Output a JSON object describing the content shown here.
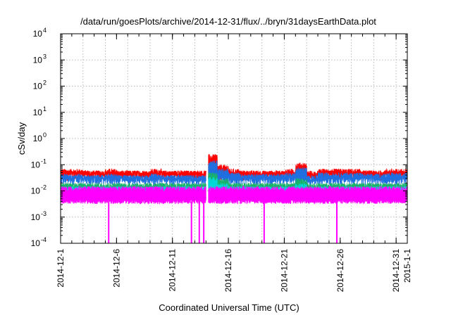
{
  "chart_data": {
    "type": "line",
    "title": "/data/run/goesPlots/archive/2014-12-31/flux/../bryn/31daysEarthData.plot",
    "xlabel": "Coordinated Universal Time (UTC)",
    "ylabel": "cSv/day",
    "x_range": [
      "2014-12-01",
      "2015-01-01"
    ],
    "x_ticks": [
      "2014-12-1",
      "2014-12-6",
      "2014-12-11",
      "2014-12-16",
      "2014-12-21",
      "2014-12-26",
      "2014-12-31",
      "2015-1-1"
    ],
    "y_scale": "log",
    "ylim": [
      0.0001,
      10000
    ],
    "y_ticks": [
      {
        "base": "10",
        "exp": "4"
      },
      {
        "base": "10",
        "exp": "3"
      },
      {
        "base": "10",
        "exp": "2"
      },
      {
        "base": "10",
        "exp": "1"
      },
      {
        "base": "10",
        "exp": "0"
      },
      {
        "base": "10",
        "exp": "-1"
      },
      {
        "base": "10",
        "exp": "-2"
      },
      {
        "base": "10",
        "exp": "-3"
      },
      {
        "base": "10",
        "exp": "-4"
      }
    ],
    "grid": true,
    "data_gap": [
      "2014-12-14",
      "2014-12-14.2"
    ],
    "series": [
      {
        "color": "#ff0000",
        "baseline": 0.06,
        "day_values": [
          0.07,
          0.07,
          0.06,
          0.06,
          0.07,
          0.06,
          0.06,
          0.06,
          0.07,
          0.06,
          0.06,
          0.06,
          0.06,
          0.25,
          0.1,
          0.07,
          0.06,
          0.06,
          0.06,
          0.06,
          0.07,
          0.12,
          0.05,
          0.07,
          0.07,
          0.07,
          0.07,
          0.06,
          0.06,
          0.07,
          0.07
        ]
      },
      {
        "color": "#1f6fe0",
        "baseline": 0.04,
        "day_values": [
          0.045,
          0.045,
          0.04,
          0.04,
          0.045,
          0.04,
          0.04,
          0.04,
          0.045,
          0.04,
          0.04,
          0.04,
          0.04,
          0.15,
          0.07,
          0.05,
          0.045,
          0.045,
          0.045,
          0.045,
          0.05,
          0.08,
          0.035,
          0.05,
          0.05,
          0.05,
          0.05,
          0.045,
          0.045,
          0.05,
          0.05
        ]
      },
      {
        "color": "#19b36b",
        "baseline": 0.02,
        "day_values": [
          0.02,
          0.02,
          0.02,
          0.02,
          0.02,
          0.02,
          0.02,
          0.02,
          0.02,
          0.02,
          0.02,
          0.02,
          0.02,
          0.05,
          0.03,
          0.02,
          0.02,
          0.02,
          0.02,
          0.02,
          0.02,
          0.03,
          0.018,
          0.02,
          0.02,
          0.02,
          0.02,
          0.02,
          0.02,
          0.02,
          0.02
        ]
      },
      {
        "color": "#00d8d8",
        "baseline": 0.015,
        "day_values": [
          0.015,
          0.015,
          0.015,
          0.015,
          0.015,
          0.015,
          0.015,
          0.015,
          0.015,
          0.015,
          0.015,
          0.015,
          0.015,
          0.035,
          0.02,
          0.015,
          0.015,
          0.015,
          0.015,
          0.015,
          0.015,
          0.02,
          0.012,
          0.015,
          0.015,
          0.015,
          0.015,
          0.015,
          0.015,
          0.015,
          0.015
        ]
      },
      {
        "color": "#ff00ff",
        "baseline": 0.004,
        "upper": 0.015,
        "dropouts": [
          "2014-12-05.3",
          "2014-12-12.7",
          "2014-12-13.4",
          "2014-12-13.8",
          "2014-12-19.2",
          "2014-12-25.7"
        ]
      }
    ]
  }
}
